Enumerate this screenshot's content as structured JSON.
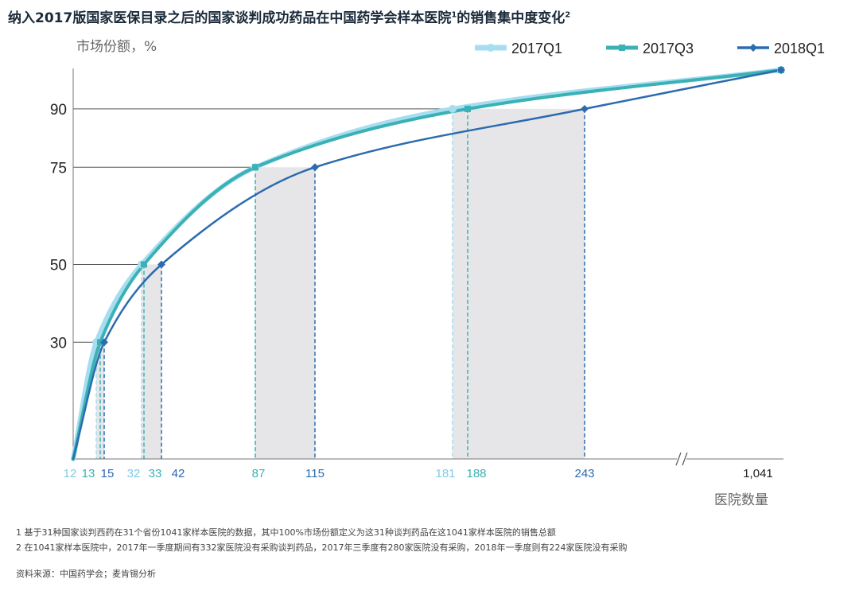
{
  "title": "纳入2017版国家医保目录之后的国家谈判成功药品在中国药学会样本医院",
  "title_sup1": "1",
  "title_tail": "的销售集中度变化",
  "title_sup2": "2",
  "footnotes": [
    "1 基于31种国家谈判西药在31个省份1041家样本医院的数据，其中100%市场份额定义为这31种谈判药品在这1041家样本医院的销售总额",
    "2 在1041家样本医院中，2017年一季度期间有332家医院没有采购谈判药品，2017年三季度有280家医院没有采购，2018年一季度则有224家医院没有采购"
  ],
  "source": "资料来源：中国药学会；麦肯锡分析",
  "chart_data": {
    "type": "line",
    "ylabel": "市场份额，%",
    "xlabel": "医院数量",
    "y_ticks": [
      "30",
      "50",
      "75",
      "90"
    ],
    "x_axis_break": true,
    "legend_position": "top-right",
    "series": [
      {
        "name": "2017Q1",
        "color": "#a6ddf0",
        "x": [
          0,
          12,
          32,
          87,
          181,
          1041
        ],
        "y": [
          0,
          30,
          50,
          75,
          90,
          100
        ],
        "markers": [
          "12",
          "32",
          "87",
          "181"
        ]
      },
      {
        "name": "2017Q3",
        "color": "#3ab1b5",
        "x": [
          0,
          13,
          33,
          87,
          188,
          1041
        ],
        "y": [
          0,
          30,
          50,
          75,
          90,
          100
        ],
        "markers": [
          "13",
          "33",
          "87",
          "188"
        ]
      },
      {
        "name": "2018Q1",
        "color": "#2c6bb0",
        "x": [
          0,
          15,
          42,
          115,
          243,
          1041
        ],
        "y": [
          0,
          30,
          50,
          75,
          90,
          100
        ],
        "markers": [
          "15",
          "42",
          "115",
          "243"
        ]
      }
    ],
    "x_labels": [
      {
        "text": "12",
        "color": "#7fcbe6"
      },
      {
        "text": "13",
        "color": "#3ab1b5"
      },
      {
        "text": "15",
        "color": "#2c6bb0"
      },
      {
        "text": "32",
        "color": "#7fcbe6"
      },
      {
        "text": "33",
        "color": "#3ab1b5"
      },
      {
        "text": "42",
        "color": "#2c6bb0"
      },
      {
        "text": "87",
        "color": "#3ab1b5"
      },
      {
        "text": "115",
        "color": "#2c6bb0"
      },
      {
        "text": "181",
        "color": "#7fcbe6"
      },
      {
        "text": "188",
        "color": "#3ab1b5"
      },
      {
        "text": "243",
        "color": "#2c6bb0"
      },
      {
        "text": "1,041",
        "color": "#222222"
      }
    ]
  }
}
